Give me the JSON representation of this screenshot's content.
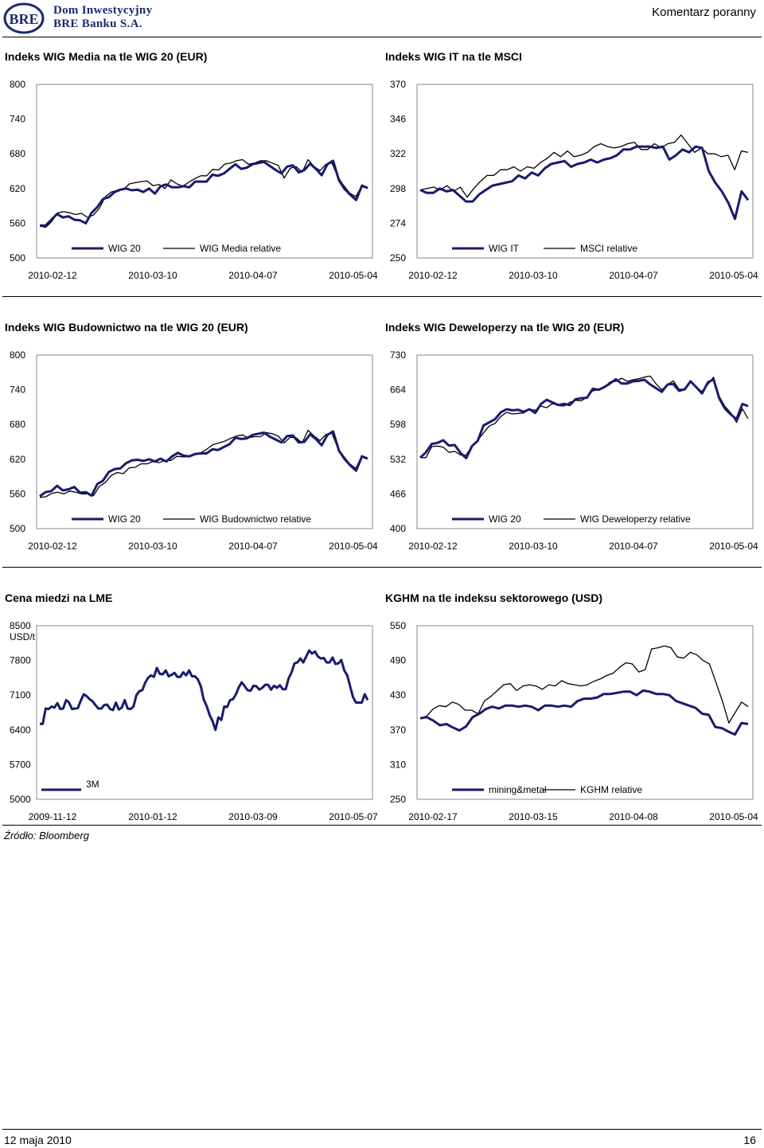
{
  "header": {
    "brand_line1": "Dom Inwestycyjny",
    "brand_line2": "BRE Banku S.A.",
    "logo_text": "BRE",
    "doc_type": "Komentarz poranny"
  },
  "footer": {
    "date": "12 maja 2010",
    "page": "16",
    "source": "Źródło: Bloomberg"
  },
  "colors": {
    "series_primary": "#1a1a6e",
    "series_secondary": "#000000",
    "divider": "#000000"
  },
  "chart_data": [
    {
      "type": "line",
      "title": "Indeks WIG Media na tle WIG 20 (EUR)",
      "ylim": [
        500,
        800
      ],
      "yticks": [
        "800",
        "740",
        "680",
        "620",
        "560",
        "500"
      ],
      "ylabel": "",
      "xticks": [
        "2010-02-12",
        "2010-03-10",
        "2010-04-07",
        "2010-05-04"
      ],
      "legend_position": "bottom",
      "series": [
        {
          "name": "WIG 20",
          "values": [
            556,
            556,
            566,
            576,
            570,
            572,
            566,
            565,
            560,
            578,
            588,
            602,
            605,
            614,
            618,
            620,
            617,
            618,
            614,
            620,
            611,
            624,
            627,
            622,
            622,
            624,
            622,
            632,
            632,
            632,
            644,
            642,
            646,
            654,
            662,
            654,
            656,
            662,
            664,
            666,
            659,
            652,
            646,
            658,
            660,
            648,
            652,
            663,
            654,
            643,
            662,
            668,
            634,
            619,
            609,
            600,
            625,
            621
          ]
        },
        {
          "name": "WIG Media relative",
          "values": [
            555,
            553,
            563,
            578,
            580,
            578,
            575,
            577,
            570,
            574,
            586,
            606,
            614,
            617,
            618,
            628,
            630,
            632,
            633,
            625,
            627,
            620,
            635,
            628,
            624,
            631,
            637,
            642,
            642,
            653,
            652,
            662,
            664,
            668,
            670,
            662,
            664,
            668,
            668,
            664,
            660,
            638,
            655,
            658,
            648,
            670,
            658,
            651,
            662,
            664,
            640,
            625,
            612,
            606,
            624,
            620
          ]
        }
      ]
    },
    {
      "type": "line",
      "title": "Indeks WIG IT na tle MSCI",
      "ylim": [
        250,
        370
      ],
      "yticks": [
        "370",
        "346",
        "322",
        "298",
        "274",
        "250"
      ],
      "ylabel": "",
      "xticks": [
        "2010-02-12",
        "2010-03-10",
        "2010-04-07",
        "2010-05-04"
      ],
      "legend_position": "bottom",
      "series": [
        {
          "name": "WIG IT",
          "values": [
            297,
            295,
            295,
            298,
            296,
            297,
            293,
            289,
            289,
            294,
            297,
            300,
            301,
            302,
            303,
            307,
            305,
            309,
            307,
            312,
            315,
            316,
            317,
            313,
            315,
            316,
            318,
            316,
            318,
            319,
            321,
            325,
            325,
            327,
            327,
            327,
            326,
            327,
            318,
            321,
            325,
            323,
            327,
            326,
            310,
            302,
            296,
            288,
            277,
            296,
            290
          ]
        },
        {
          "name": "MSCI relative",
          "values": [
            297,
            298,
            299,
            297,
            300,
            296,
            299,
            292,
            298,
            303,
            307,
            307,
            311,
            311,
            313,
            310,
            313,
            312,
            316,
            319,
            323,
            320,
            324,
            320,
            321,
            323,
            327,
            329,
            327,
            326,
            327,
            329,
            330,
            325,
            325,
            329,
            326,
            329,
            330,
            335,
            329,
            323,
            326,
            322,
            322,
            320,
            321,
            311,
            324,
            323
          ]
        }
      ]
    },
    {
      "type": "line",
      "title": "Indeks WIG Budownictwo na tle WIG 20 (EUR)",
      "ylim": [
        500,
        800
      ],
      "yticks": [
        "800",
        "740",
        "680",
        "620",
        "560",
        "500"
      ],
      "ylabel": "",
      "xticks": [
        "2010-02-12",
        "2010-03-10",
        "2010-04-07",
        "2010-05-04"
      ],
      "legend_position": "bottom",
      "series": [
        {
          "name": "WIG 20",
          "values": [
            556,
            563,
            565,
            574,
            566,
            568,
            572,
            562,
            563,
            557,
            577,
            583,
            598,
            603,
            604,
            613,
            618,
            619,
            617,
            620,
            616,
            621,
            616,
            625,
            631,
            626,
            625,
            629,
            630,
            630,
            637,
            636,
            641,
            646,
            657,
            655,
            656,
            662,
            664,
            666,
            659,
            654,
            649,
            660,
            661,
            649,
            650,
            663,
            655,
            644,
            662,
            668,
            635,
            620,
            609,
            600,
            625,
            621
          ]
        },
        {
          "name": "WIG Budownictwo relative",
          "values": [
            554,
            555,
            561,
            563,
            560,
            565,
            563,
            560,
            560,
            557,
            573,
            580,
            592,
            597,
            595,
            605,
            606,
            612,
            612,
            616,
            614,
            618,
            618,
            625,
            624,
            624,
            630,
            631,
            637,
            645,
            648,
            651,
            656,
            660,
            662,
            657,
            659,
            659,
            666,
            664,
            660,
            648,
            658,
            657,
            648,
            670,
            660,
            652,
            663,
            665,
            639,
            625,
            612,
            604,
            625,
            621
          ]
        }
      ]
    },
    {
      "type": "line",
      "title": "Indeks WIG Deweloperzy na tle WIG 20 (EUR)",
      "ylim": [
        400,
        730
      ],
      "yticks": [
        "730",
        "664",
        "598",
        "532",
        "466",
        "400"
      ],
      "ylabel": "",
      "xticks": [
        "2010-02-12",
        "2010-03-10",
        "2010-04-07",
        "2010-05-04"
      ],
      "legend_position": "bottom",
      "series": [
        {
          "name": "WIG 20",
          "values": [
            535,
            545,
            561,
            563,
            568,
            558,
            559,
            544,
            534,
            557,
            567,
            596,
            602,
            608,
            621,
            627,
            625,
            626,
            622,
            627,
            620,
            637,
            645,
            640,
            635,
            637,
            635,
            646,
            648,
            649,
            666,
            664,
            669,
            676,
            684,
            676,
            676,
            680,
            681,
            683,
            674,
            667,
            660,
            674,
            675,
            662,
            665,
            680,
            669,
            657,
            678,
            684,
            647,
            628,
            617,
            608,
            637,
            633
          ]
        },
        {
          "name": "WIG Deweloperzy relative",
          "values": [
            535,
            535,
            556,
            557,
            555,
            545,
            547,
            540,
            540,
            557,
            568,
            582,
            595,
            600,
            613,
            621,
            618,
            619,
            620,
            627,
            625,
            633,
            630,
            638,
            634,
            633,
            640,
            644,
            643,
            650,
            662,
            664,
            668,
            679,
            680,
            686,
            680,
            683,
            685,
            688,
            690,
            675,
            664,
            674,
            681,
            665,
            665,
            680,
            668,
            661,
            674,
            688,
            651,
            632,
            620,
            602,
            628,
            609
          ]
        }
      ]
    },
    {
      "type": "line",
      "title": "Cena miedzi na LME",
      "ylim": [
        5000,
        8500
      ],
      "yticks": [
        "8500",
        "7800",
        "7100",
        "6400",
        "5700",
        "5000"
      ],
      "ylabel": "USD/t",
      "xticks": [
        "2009-11-12",
        "2010-01-12",
        "2010-03-09",
        "2010-05-07"
      ],
      "legend_position": "bottom-left",
      "series": [
        {
          "name": "3M",
          "values": [
            6520,
            6520,
            6830,
            6820,
            6870,
            6850,
            6940,
            6820,
            6830,
            7000,
            6950,
            6820,
            6830,
            6840,
            6990,
            7120,
            7080,
            7020,
            6980,
            6900,
            6830,
            6830,
            6900,
            6910,
            6820,
            6800,
            6950,
            6810,
            6850,
            7000,
            6830,
            6820,
            6870,
            7100,
            7180,
            7200,
            7350,
            7450,
            7500,
            7470,
            7650,
            7530,
            7520,
            7600,
            7480,
            7510,
            7550,
            7470,
            7470,
            7560,
            7500,
            7600,
            7480,
            7480,
            7420,
            7280,
            7010,
            6880,
            6700,
            6580,
            6400,
            6650,
            6600,
            6870,
            6860,
            7000,
            7020,
            7120,
            7260,
            7360,
            7280,
            7200,
            7190,
            7290,
            7280,
            7210,
            7250,
            7310,
            7310,
            7210,
            7290,
            7250,
            7300,
            7220,
            7220,
            7440,
            7560,
            7740,
            7760,
            7840,
            7760,
            7880,
            8000,
            7940,
            7980,
            7880,
            7840,
            7850,
            7760,
            7760,
            7860,
            7730,
            7740,
            7810,
            7600,
            7500,
            7280,
            7060,
            6950,
            6950,
            6950,
            7120,
            7000
          ]
        }
      ]
    },
    {
      "type": "line",
      "title": "KGHM na tle indeksu sektorowego (USD)",
      "ylim": [
        250,
        550
      ],
      "yticks": [
        "550",
        "490",
        "430",
        "370",
        "310",
        "250"
      ],
      "ylabel": "",
      "xticks": [
        "2010-02-17",
        "2010-03-15",
        "2010-04-08",
        "2010-05-04"
      ],
      "legend_position": "bottom",
      "series": [
        {
          "name": "mining&metal",
          "values": [
            390,
            392,
            386,
            378,
            380,
            374,
            369,
            376,
            392,
            398,
            406,
            410,
            407,
            412,
            412,
            410,
            412,
            410,
            404,
            412,
            412,
            410,
            412,
            410,
            420,
            424,
            424,
            426,
            432,
            432,
            434,
            436,
            436,
            430,
            438,
            436,
            432,
            432,
            430,
            420,
            416,
            412,
            408,
            398,
            396,
            375,
            373,
            367,
            362,
            382,
            380
          ]
        },
        {
          "name": "KGHM relative",
          "values": [
            390,
            394,
            406,
            412,
            410,
            418,
            414,
            404,
            404,
            398,
            420,
            428,
            438,
            448,
            450,
            438,
            446,
            448,
            446,
            440,
            448,
            446,
            455,
            450,
            448,
            446,
            448,
            454,
            458,
            464,
            468,
            478,
            486,
            484,
            470,
            474,
            510,
            512,
            515,
            512,
            496,
            494,
            504,
            500,
            490,
            484,
            452,
            420,
            382,
            400,
            418,
            410
          ]
        }
      ]
    }
  ]
}
